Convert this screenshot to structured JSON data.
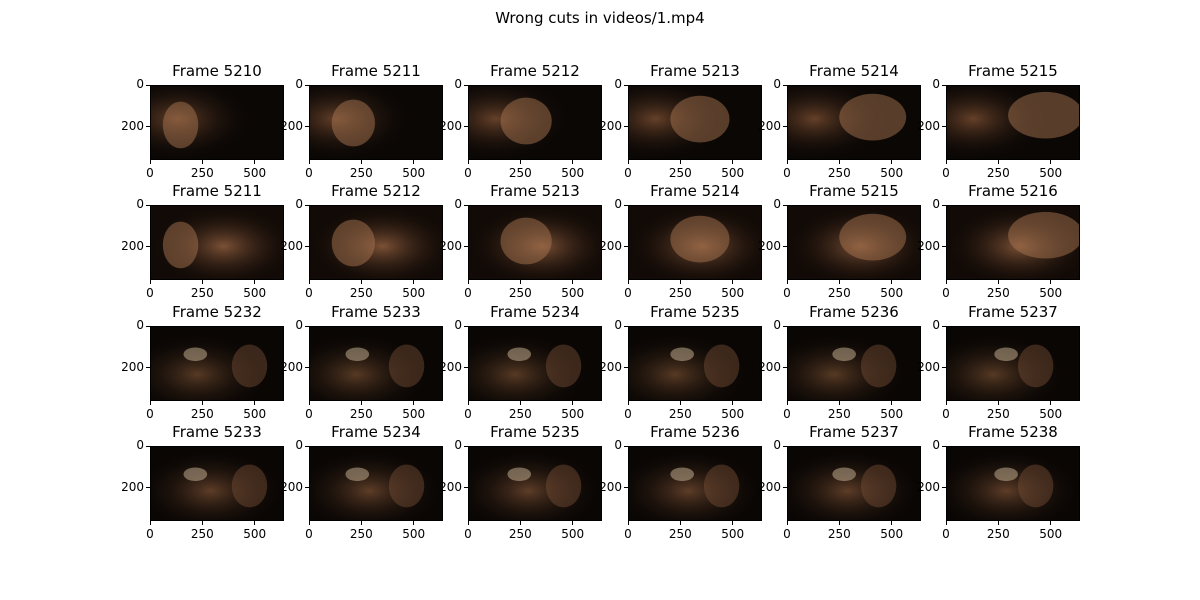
{
  "figure": {
    "title": "Wrong cuts in videos/1.mp4",
    "x_ticks": [
      "0",
      "250",
      "500"
    ],
    "y_ticks": [
      "0",
      "200"
    ],
    "rows": [
      {
        "frames": [
          "Frame 5210",
          "Frame 5211",
          "Frame 5212",
          "Frame 5213",
          "Frame 5214",
          "Frame 5215"
        ]
      },
      {
        "frames": [
          "Frame 5211",
          "Frame 5212",
          "Frame 5213",
          "Frame 5214",
          "Frame 5215",
          "Frame 5216"
        ]
      },
      {
        "frames": [
          "Frame 5232",
          "Frame 5233",
          "Frame 5234",
          "Frame 5235",
          "Frame 5236",
          "Frame 5237"
        ]
      },
      {
        "frames": [
          "Frame 5233",
          "Frame 5234",
          "Frame 5235",
          "Frame 5236",
          "Frame 5237",
          "Frame 5238"
        ]
      }
    ]
  }
}
